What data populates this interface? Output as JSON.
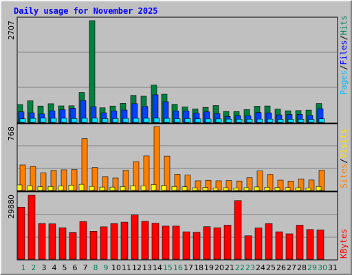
{
  "title": "Daily usage for November 2025",
  "chart_data": [
    {
      "type": "bar",
      "panel": "requests",
      "categories": [
        "1",
        "2",
        "3",
        "4",
        "5",
        "6",
        "7",
        "8",
        "9",
        "10",
        "11",
        "12",
        "13",
        "14",
        "15",
        "16",
        "17",
        "18",
        "19",
        "20",
        "21",
        "22",
        "23",
        "24",
        "25",
        "26",
        "27",
        "28",
        "29",
        "30",
        "31"
      ],
      "ylim": [
        0,
        2707
      ],
      "y_tick_label": "2707",
      "legend": [
        "Pages",
        "/",
        "Files",
        "/",
        "Hits"
      ],
      "series": [
        {
          "name": "Hits",
          "color": "#008040",
          "values": [
            475,
            573,
            435,
            496,
            439,
            442,
            795,
            2707,
            388,
            435,
            505,
            718,
            696,
            992,
            750,
            480,
            411,
            357,
            399,
            448,
            290,
            288,
            340,
            430,
            437,
            354,
            309,
            314,
            327,
            502,
            0
          ]
        },
        {
          "name": "Files",
          "color": "#0040ff",
          "values": [
            280,
            255,
            222,
            308,
            338,
            376,
            580,
            420,
            255,
            303,
            327,
            498,
            425,
            734,
            550,
            302,
            302,
            244,
            279,
            236,
            158,
            180,
            175,
            261,
            253,
            199,
            210,
            212,
            185,
            365,
            0
          ]
        },
        {
          "name": "Pages",
          "color": "#00e0ff",
          "values": [
            95,
            108,
            113,
            110,
            111,
            104,
            110,
            112,
            102,
            104,
            108,
            110,
            110,
            112,
            108,
            100,
            103,
            95,
            93,
            93,
            87,
            84,
            85,
            88,
            88,
            81,
            82,
            82,
            78,
            96,
            0
          ]
        }
      ]
    },
    {
      "type": "bar",
      "panel": "visits",
      "categories": [
        "1",
        "2",
        "3",
        "4",
        "5",
        "6",
        "7",
        "8",
        "9",
        "10",
        "11",
        "12",
        "13",
        "14",
        "15",
        "16",
        "17",
        "18",
        "19",
        "20",
        "21",
        "22",
        "23",
        "24",
        "25",
        "26",
        "27",
        "28",
        "29",
        "30",
        "31"
      ],
      "ylim": [
        0,
        768
      ],
      "y_tick_label": "768",
      "legend": [
        "Sites",
        "/",
        "Visits"
      ],
      "series": [
        {
          "name": "Visits",
          "color": "#ff8000",
          "values": [
            306,
            288,
            211,
            240,
            248,
            250,
            622,
            275,
            166,
            149,
            242,
            346,
            414,
            768,
            412,
            194,
            184,
            116,
            122,
            116,
            118,
            114,
            153,
            234,
            192,
            124,
            113,
            139,
            125,
            242,
            0
          ]
        },
        {
          "name": "Sites",
          "color": "#ffff00",
          "values": [
            66,
            58,
            45,
            47,
            53,
            64,
            73,
            48,
            40,
            40,
            47,
            57,
            55,
            71,
            61,
            47,
            44,
            32,
            36,
            31,
            33,
            30,
            33,
            42,
            39,
            35,
            35,
            32,
            30,
            47,
            0
          ]
        }
      ]
    },
    {
      "type": "bar",
      "panel": "kbytes",
      "categories": [
        "1",
        "2",
        "3",
        "4",
        "5",
        "6",
        "7",
        "8",
        "9",
        "10",
        "11",
        "12",
        "13",
        "14",
        "15",
        "16",
        "17",
        "18",
        "19",
        "20",
        "21",
        "22",
        "23",
        "24",
        "25",
        "26",
        "27",
        "28",
        "29",
        "30",
        "31"
      ],
      "ylim": [
        0,
        29880
      ],
      "y_tick_label": "29880",
      "legend": [
        "KBytes"
      ],
      "series": [
        {
          "name": "KBytes",
          "color": "#ff0000",
          "values": [
            24330,
            29880,
            16650,
            16530,
            14690,
            12430,
            17550,
            13070,
            15140,
            16650,
            17320,
            20650,
            17700,
            16810,
            15470,
            15470,
            12810,
            12560,
            15190,
            14690,
            15890,
            27370,
            10970,
            14610,
            16640,
            12810,
            11870,
            15890,
            13870,
            13690,
            0
          ]
        }
      ]
    }
  ],
  "colors": {
    "weekday_label": "#000000",
    "weekend_label": "#00805c",
    "hits_legend": "#00805c",
    "files_legend": "#0000ff",
    "pages_legend": "#00c0ff",
    "visits_legend": "#ffe000",
    "sites_legend": "#ff8000",
    "kbytes_legend": "#ff0000"
  },
  "weekend_days": [
    "1",
    "2",
    "8",
    "9",
    "15",
    "16",
    "22",
    "23",
    "29",
    "30"
  ]
}
